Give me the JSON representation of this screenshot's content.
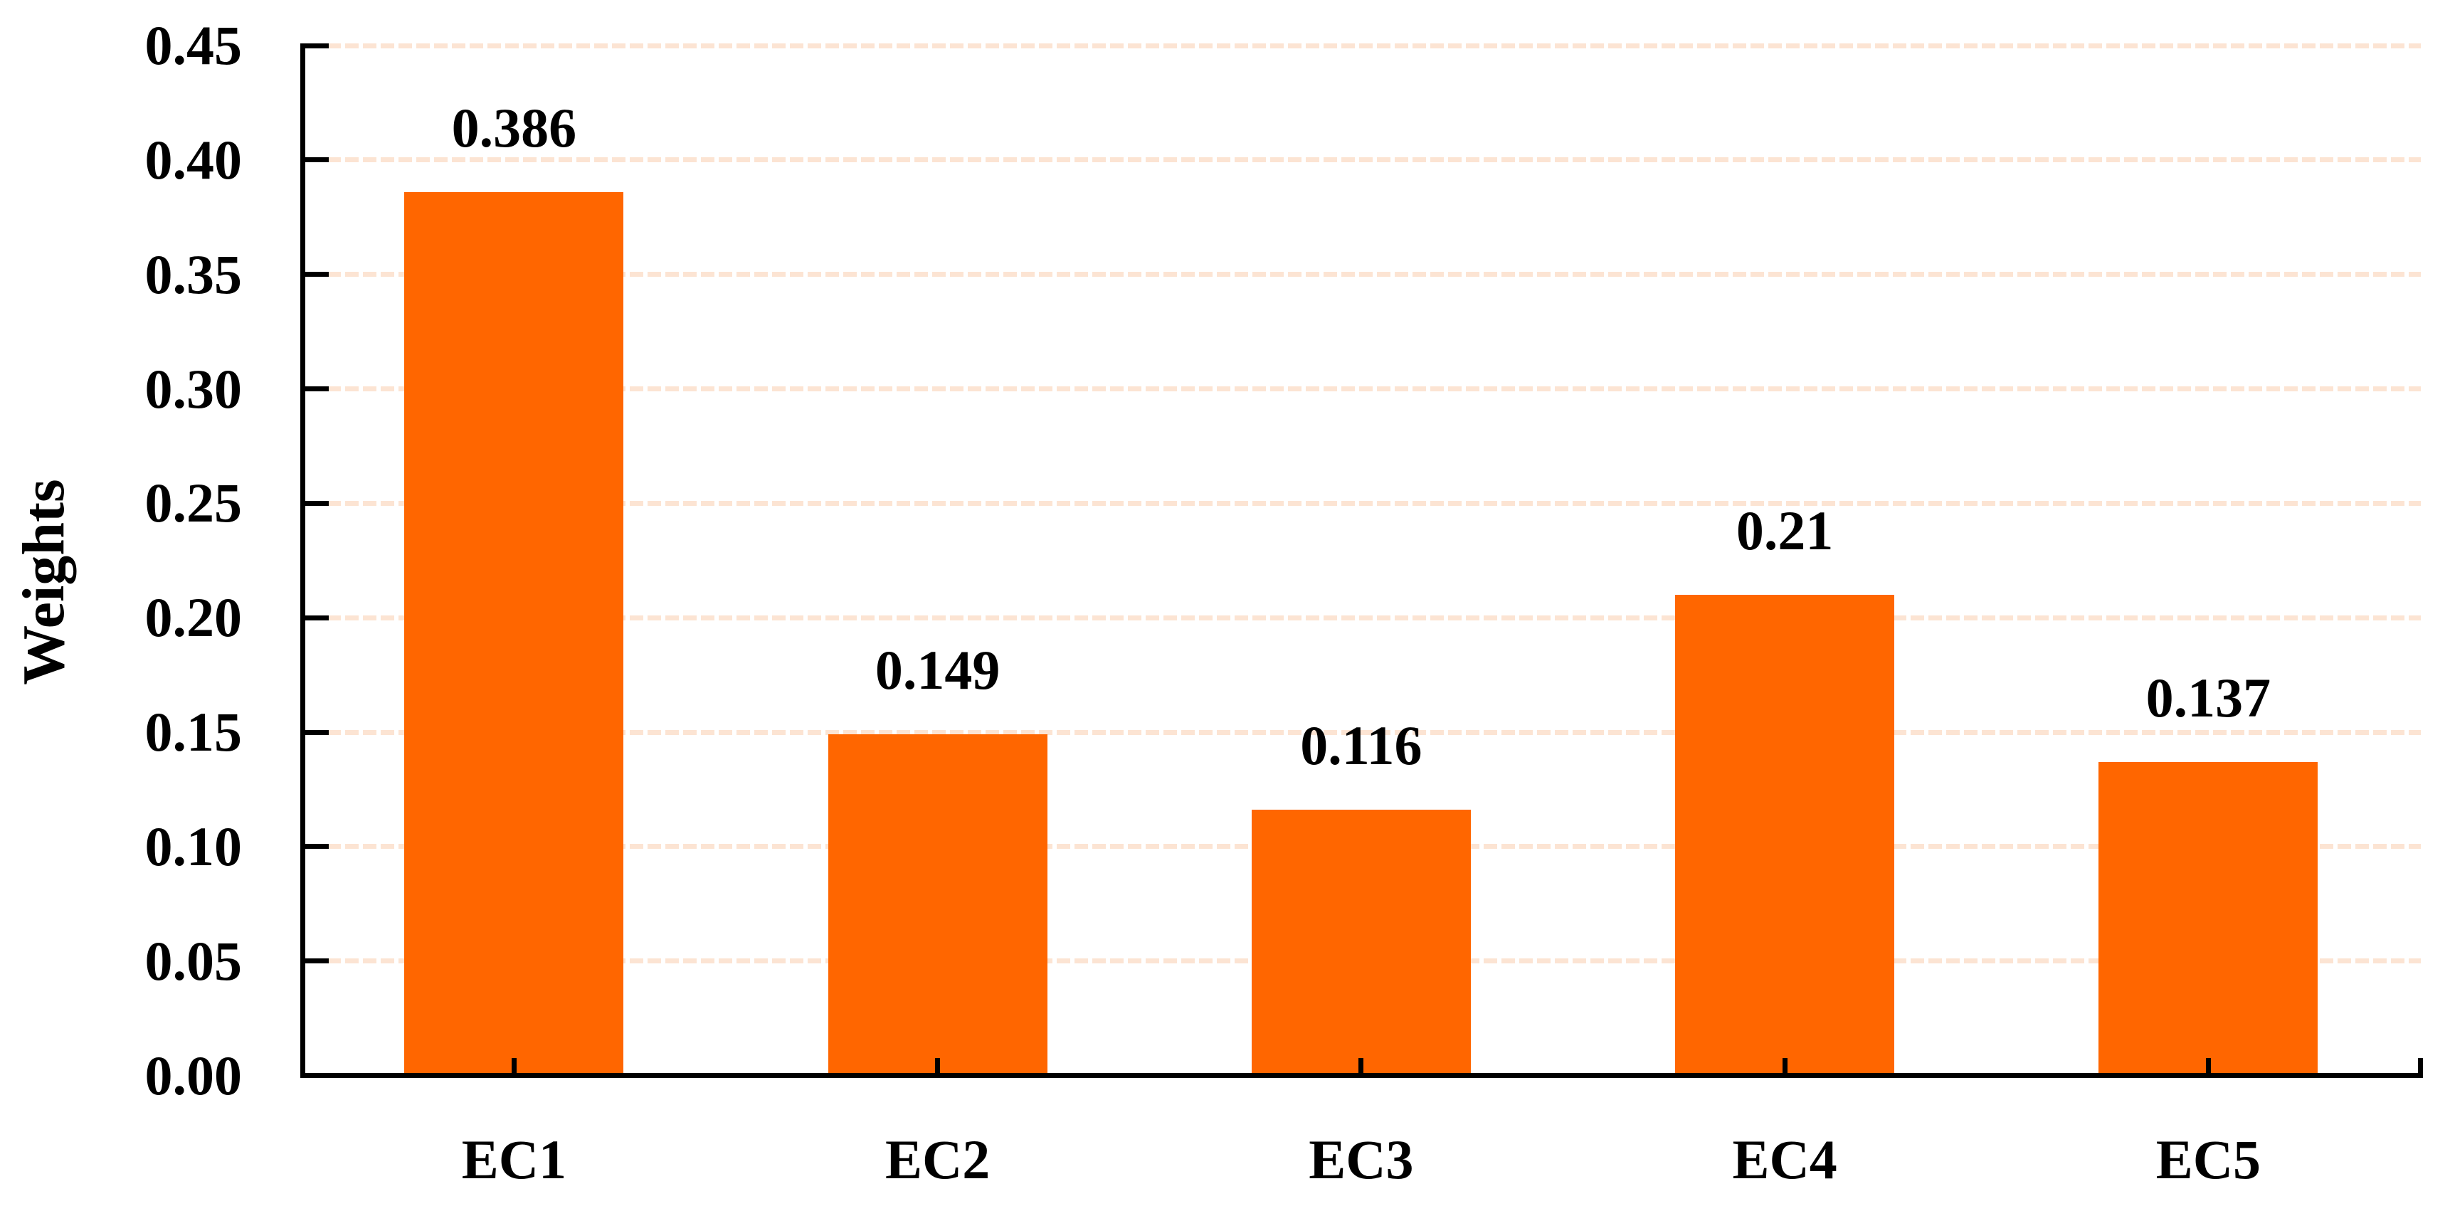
{
  "chart_data": {
    "type": "bar",
    "categories": [
      "EC1",
      "EC2",
      "EC3",
      "EC4",
      "EC5"
    ],
    "values": [
      0.386,
      0.149,
      0.116,
      0.21,
      0.137
    ],
    "data_labels": [
      "0.386",
      "0.149",
      "0.116",
      "0.21",
      "0.137"
    ],
    "xlabel": "",
    "ylabel": "Weights",
    "ylim": [
      0,
      0.45
    ],
    "ytick_step": 0.05,
    "ytick_labels": [
      "0.00",
      "0.05",
      "0.10",
      "0.15",
      "0.20",
      "0.25",
      "0.30",
      "0.35",
      "0.40",
      "0.45"
    ],
    "grid": "horizontal-dashed",
    "legend": "none",
    "colors": {
      "bar": "#FF6600",
      "gridline": "#FCE4D3",
      "axis": "#000000",
      "text": "#000000",
      "background": "#FFFFFF"
    }
  }
}
